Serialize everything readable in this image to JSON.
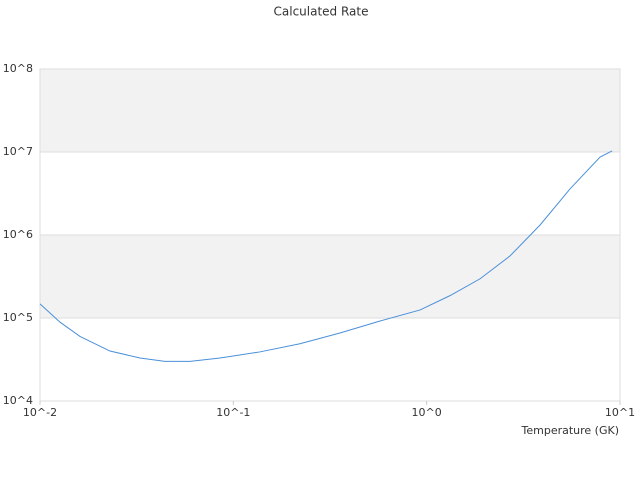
{
  "chart_data": {
    "type": "line",
    "title": "Calculated Rate",
    "xlabel": "Temperature (GK)",
    "xscale": "log",
    "yscale": "log",
    "xlim": [
      0.01,
      10
    ],
    "ylim": [
      10000,
      100000000
    ],
    "xticks": [
      {
        "value": 0.01,
        "label": "10^-2"
      },
      {
        "value": 0.1,
        "label": "10^-1"
      },
      {
        "value": 1,
        "label": "10^0"
      },
      {
        "value": 10,
        "label": "10^1"
      }
    ],
    "yticks": [
      {
        "value": 10000,
        "label": "10^4"
      },
      {
        "value": 100000,
        "label": "10^5"
      },
      {
        "value": 1000000,
        "label": "10^6"
      },
      {
        "value": 10000000,
        "label": "10^7"
      },
      {
        "value": 100000000,
        "label": "10^8"
      }
    ],
    "grid": true,
    "band_color": "#f2f2f2",
    "x": [
      0.01,
      0.0127,
      0.0161,
      0.023,
      0.0329,
      0.0443,
      0.0597,
      0.0854,
      0.137,
      0.221,
      0.356,
      0.574,
      0.925,
      1.32,
      1.89,
      2.7,
      3.86,
      5.52,
      7.89,
      9.1
    ],
    "series": [
      {
        "color": "#4a90d9",
        "values": [
          148000,
          89000,
          60000,
          40000,
          33000,
          30000,
          30000,
          33000,
          39000,
          49000,
          66000,
          92000,
          125000,
          186000,
          297000,
          560000,
          1320000,
          3600000,
          8700000,
          10300000
        ]
      }
    ]
  }
}
